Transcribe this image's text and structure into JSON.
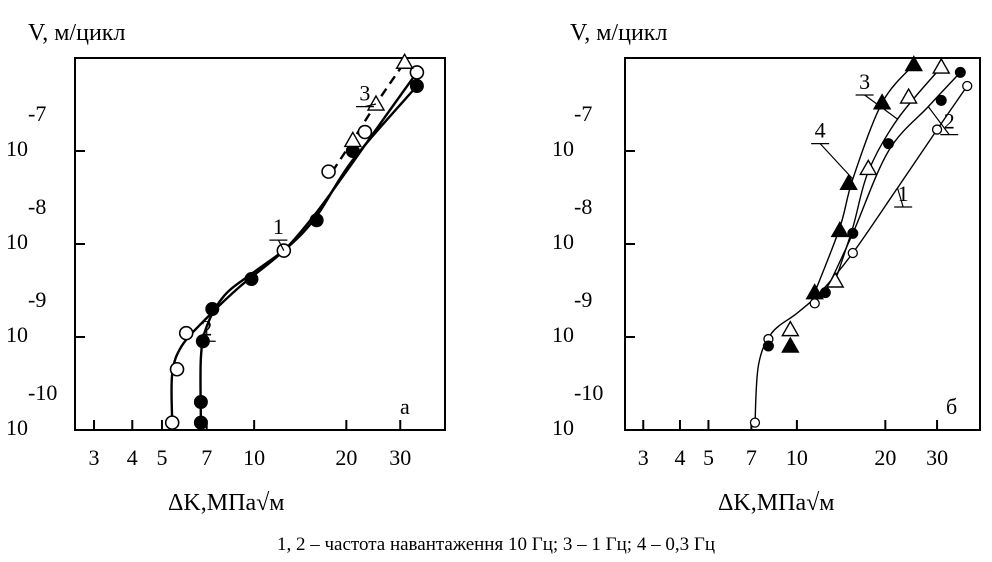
{
  "caption": "1, 2 – частота навантаження 10 Гц; 3 – 1 Гц; 4 – 0,3 Гц",
  "chart_data": [
    {
      "type": "line",
      "panel_label": "а",
      "ylabel": "V, м/цикл",
      "xlabel": "ΔK,МПа√м",
      "x_scale": "log",
      "y_scale": "log",
      "xlim": [
        2.6,
        42
      ],
      "ylim": [
        1e-10,
        1e-06
      ],
      "xticks": [
        "3",
        "4",
        "5",
        "7",
        "10",
        "20",
        "30"
      ],
      "yticks": [
        {
          "base": "10",
          "exp": "-10"
        },
        {
          "base": "10",
          "exp": "-9"
        },
        {
          "base": "10",
          "exp": "-8"
        },
        {
          "base": "10",
          "exp": "-7"
        }
      ],
      "series": [
        {
          "label": "1",
          "marker": "open-circle",
          "line": "solid",
          "points": [
            [
              5.4,
              1.2e-10
            ],
            [
              5.6,
              4.5e-10
            ],
            [
              6.0,
              1.1e-09
            ],
            [
              12.5,
              8.5e-09
            ],
            [
              17.5,
              6e-08
            ],
            [
              23,
              1.6e-07
            ],
            [
              34,
              7e-07
            ]
          ],
          "curve": [
            [
              5.4,
              1.2e-10
            ],
            [
              5.4,
              4e-10
            ],
            [
              5.8,
              8e-10
            ],
            [
              7,
              1.6e-09
            ],
            [
              9,
              3.5e-09
            ],
            [
              12.5,
              8.5e-09
            ],
            [
              16,
              2.2e-08
            ],
            [
              20,
              6e-08
            ],
            [
              25,
              1.7e-07
            ],
            [
              34,
              7e-07
            ]
          ]
        },
        {
          "label": "2",
          "marker": "filled-circle",
          "line": "solid",
          "points": [
            [
              6.7,
              1.2e-10
            ],
            [
              6.7,
              2e-10
            ],
            [
              6.8,
              9e-10
            ],
            [
              7.3,
              2e-09
            ],
            [
              9.8,
              4.2e-09
            ],
            [
              16,
              1.8e-08
            ],
            [
              21,
              1e-07
            ],
            [
              34,
              5e-07
            ]
          ],
          "curve": [
            [
              6.7,
              1.2e-10
            ],
            [
              6.7,
              6e-10
            ],
            [
              7,
              1.3e-09
            ],
            [
              8,
              2.8e-09
            ],
            [
              10,
              5e-09
            ],
            [
              13,
              9.5e-09
            ],
            [
              16,
              2e-08
            ],
            [
              21,
              8e-08
            ],
            [
              34,
              5e-07
            ]
          ]
        },
        {
          "label": "3",
          "marker": "open-triangle",
          "line": "dashed",
          "points": [
            [
              21,
              1.3e-07
            ],
            [
              25,
              3.2e-07
            ],
            [
              31,
              9e-07
            ]
          ],
          "curve": [
            [
              18,
              6e-08
            ],
            [
              21,
              1.3e-07
            ],
            [
              25,
              3.2e-07
            ],
            [
              31,
              9e-07
            ]
          ]
        }
      ],
      "callouts": [
        {
          "text": "1",
          "x": 12,
          "y": 1.1e-08
        },
        {
          "text": "2",
          "x": 7,
          "y": 9e-10
        },
        {
          "text": "3",
          "x": 23,
          "y": 3e-07
        }
      ]
    },
    {
      "type": "line",
      "panel_label": "б",
      "ylabel": "V, м/цикл",
      "xlabel": "ΔK,МПа√м",
      "x_scale": "log",
      "y_scale": "log",
      "xlim": [
        2.6,
        42
      ],
      "ylim": [
        1e-10,
        1e-06
      ],
      "xticks": [
        "3",
        "4",
        "5",
        "7",
        "10",
        "20",
        "30"
      ],
      "yticks": [
        {
          "base": "10",
          "exp": "-10"
        },
        {
          "base": "10",
          "exp": "-9"
        },
        {
          "base": "10",
          "exp": "-8"
        },
        {
          "base": "10",
          "exp": "-7"
        }
      ],
      "series": [
        {
          "label": "1",
          "marker": "small-open-circle",
          "line": "solid",
          "points": [
            [
              7.2,
              1.2e-10
            ],
            [
              8.0,
              9.5e-10
            ],
            [
              11.5,
              2.3e-09
            ],
            [
              15.5,
              8e-09
            ],
            [
              30,
              1.7e-07
            ],
            [
              38,
              5e-07
            ]
          ],
          "curve": [
            [
              7.2,
              1.2e-10
            ],
            [
              7.4,
              5e-10
            ],
            [
              8.2,
              1.1e-09
            ],
            [
              10,
              1.8e-09
            ],
            [
              12,
              3e-09
            ],
            [
              15.5,
              8e-09
            ],
            [
              22,
              4e-08
            ],
            [
              30,
              1.7e-07
            ],
            [
              38,
              5e-07
            ]
          ]
        },
        {
          "label": "2",
          "marker": "filled-circle",
          "line": "solid",
          "points": [
            [
              8.0,
              8e-10
            ],
            [
              12.5,
              3e-09
            ],
            [
              15.5,
              1.3e-08
            ],
            [
              20.5,
              1.2e-07
            ],
            [
              31,
              3.5e-07
            ],
            [
              36,
              7e-07
            ]
          ],
          "curve": [
            [
              12.5,
              3e-09
            ],
            [
              15.5,
              1.3e-08
            ],
            [
              20.5,
              1e-07
            ],
            [
              28,
              3e-07
            ],
            [
              36,
              7e-07
            ]
          ]
        },
        {
          "label": "3",
          "marker": "open-triangle",
          "line": "solid",
          "points": [
            [
              9.5,
              1.2e-09
            ],
            [
              13.5,
              4e-09
            ],
            [
              17.5,
              6.5e-08
            ],
            [
              24,
              3.8e-07
            ],
            [
              31,
              8e-07
            ]
          ],
          "curve": [
            [
              13.5,
              4e-09
            ],
            [
              15.5,
              1.5e-08
            ],
            [
              17.5,
              6e-08
            ],
            [
              22,
              2.2e-07
            ],
            [
              31,
              8e-07
            ]
          ]
        },
        {
          "label": "4",
          "marker": "filled-triangle",
          "line": "solid",
          "points": [
            [
              9.5,
              8e-10
            ],
            [
              11.5,
              3e-09
            ],
            [
              14.0,
              1.4e-08
            ],
            [
              15.0,
              4.5e-08
            ],
            [
              19.5,
              3.3e-07
            ],
            [
              25,
              8.5e-07
            ]
          ],
          "curve": [
            [
              11.5,
              3e-09
            ],
            [
              14,
              1.5e-08
            ],
            [
              15.5,
              5e-08
            ],
            [
              19.5,
              3.3e-07
            ],
            [
              25,
              8.5e-07
            ]
          ]
        }
      ],
      "callouts": [
        {
          "text": "1",
          "x": 23,
          "y": 2.5e-08
        },
        {
          "text": "2",
          "x": 33,
          "y": 1.5e-07
        },
        {
          "text": "3",
          "x": 17,
          "y": 4e-07
        },
        {
          "text": "4",
          "x": 12,
          "y": 1.2e-07
        }
      ]
    }
  ]
}
